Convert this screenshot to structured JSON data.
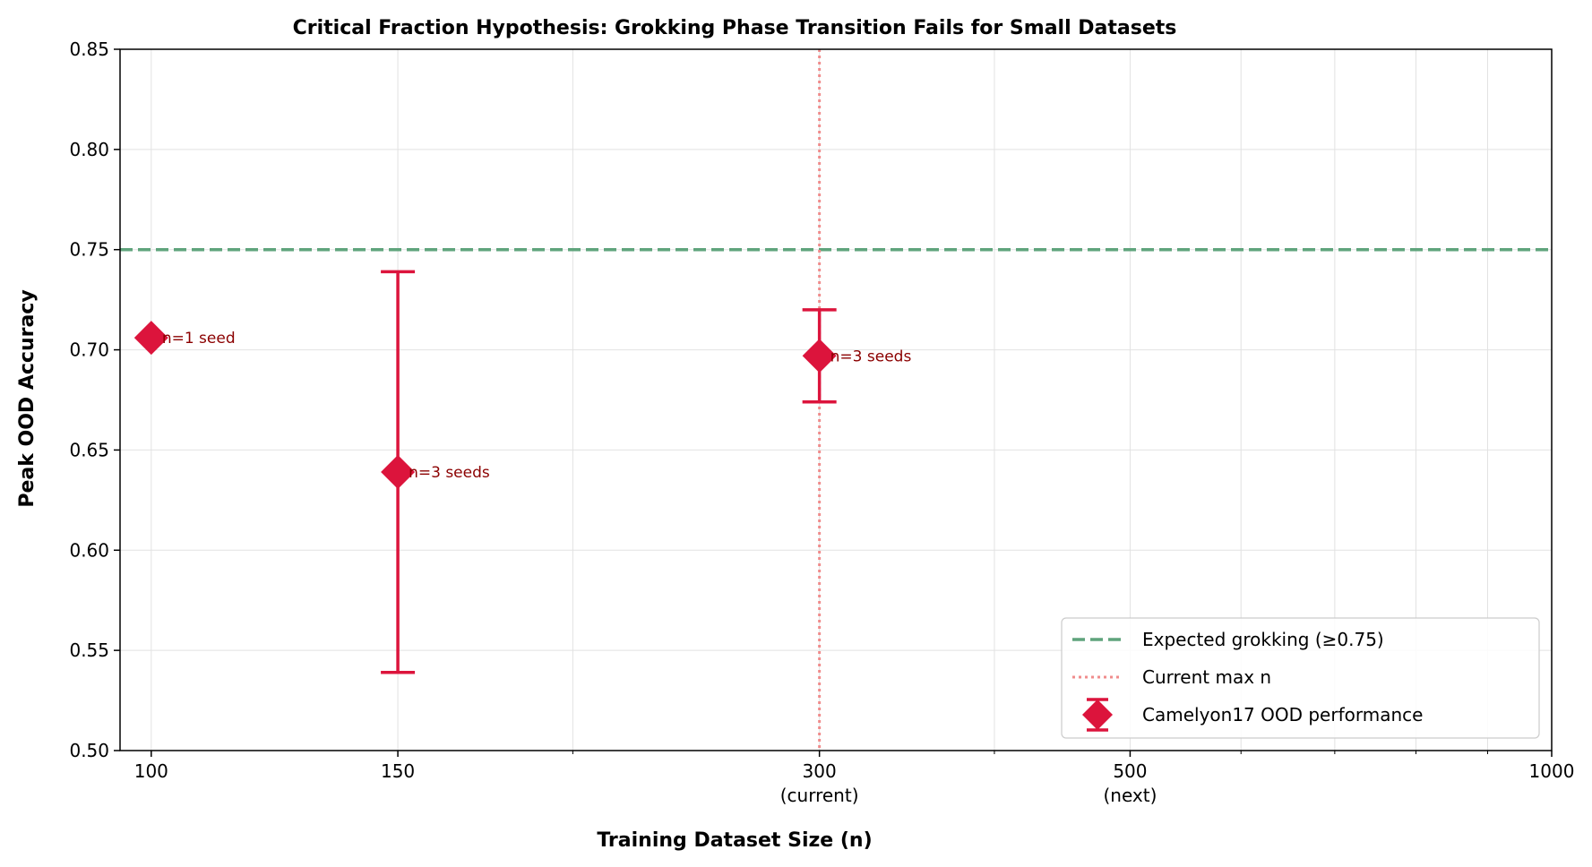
{
  "chart_data": {
    "type": "scatter",
    "title": "Critical Fraction Hypothesis: Grokking Phase Transition Fails for Small Datasets",
    "xlabel": "Training Dataset Size (n)",
    "ylabel": "Peak OOD Accuracy",
    "x_scale": "log",
    "xlim": [
      95,
      1000
    ],
    "ylim": [
      0.5,
      0.85
    ],
    "grid": true,
    "x_ticks": [
      {
        "value": 100,
        "label": "100",
        "sublabel": ""
      },
      {
        "value": 150,
        "label": "150",
        "sublabel": ""
      },
      {
        "value": 300,
        "label": "300",
        "sublabel": "(current)"
      },
      {
        "value": 500,
        "label": "500",
        "sublabel": "(next)"
      },
      {
        "value": 1000,
        "label": "1000",
        "sublabel": ""
      }
    ],
    "x_minor_ticks": [
      200,
      400,
      600,
      700,
      800,
      900
    ],
    "y_ticks": [
      {
        "value": 0.5,
        "label": "0.50"
      },
      {
        "value": 0.55,
        "label": "0.55"
      },
      {
        "value": 0.6,
        "label": "0.60"
      },
      {
        "value": 0.65,
        "label": "0.65"
      },
      {
        "value": 0.7,
        "label": "0.70"
      },
      {
        "value": 0.75,
        "label": "0.75"
      },
      {
        "value": 0.8,
        "label": "0.80"
      },
      {
        "value": 0.85,
        "label": "0.85"
      }
    ],
    "series": [
      {
        "name": "Camelyon17 OOD performance",
        "color": "#dc143c",
        "marker": "diamond",
        "points": [
          {
            "x": 100,
            "y": 0.706,
            "yerr": 0,
            "annotation": "n=1 seed"
          },
          {
            "x": 150,
            "y": 0.639,
            "yerr": 0.1,
            "annotation": "n=3 seeds"
          },
          {
            "x": 300,
            "y": 0.697,
            "yerr": 0.023,
            "annotation": "n=3 seeds"
          }
        ]
      }
    ],
    "reference_lines": [
      {
        "orientation": "horizontal",
        "value": 0.75,
        "style": "dashed",
        "color": "#5fa47c",
        "name": "Expected grokking (≥0.75)"
      },
      {
        "orientation": "vertical",
        "value": 300,
        "style": "dotted",
        "color": "#f08c8c",
        "name": "Current max n"
      }
    ],
    "legend_position": "bottom-right",
    "annotation_color": "#8b0000",
    "grid_color": "#e2e2e2"
  }
}
